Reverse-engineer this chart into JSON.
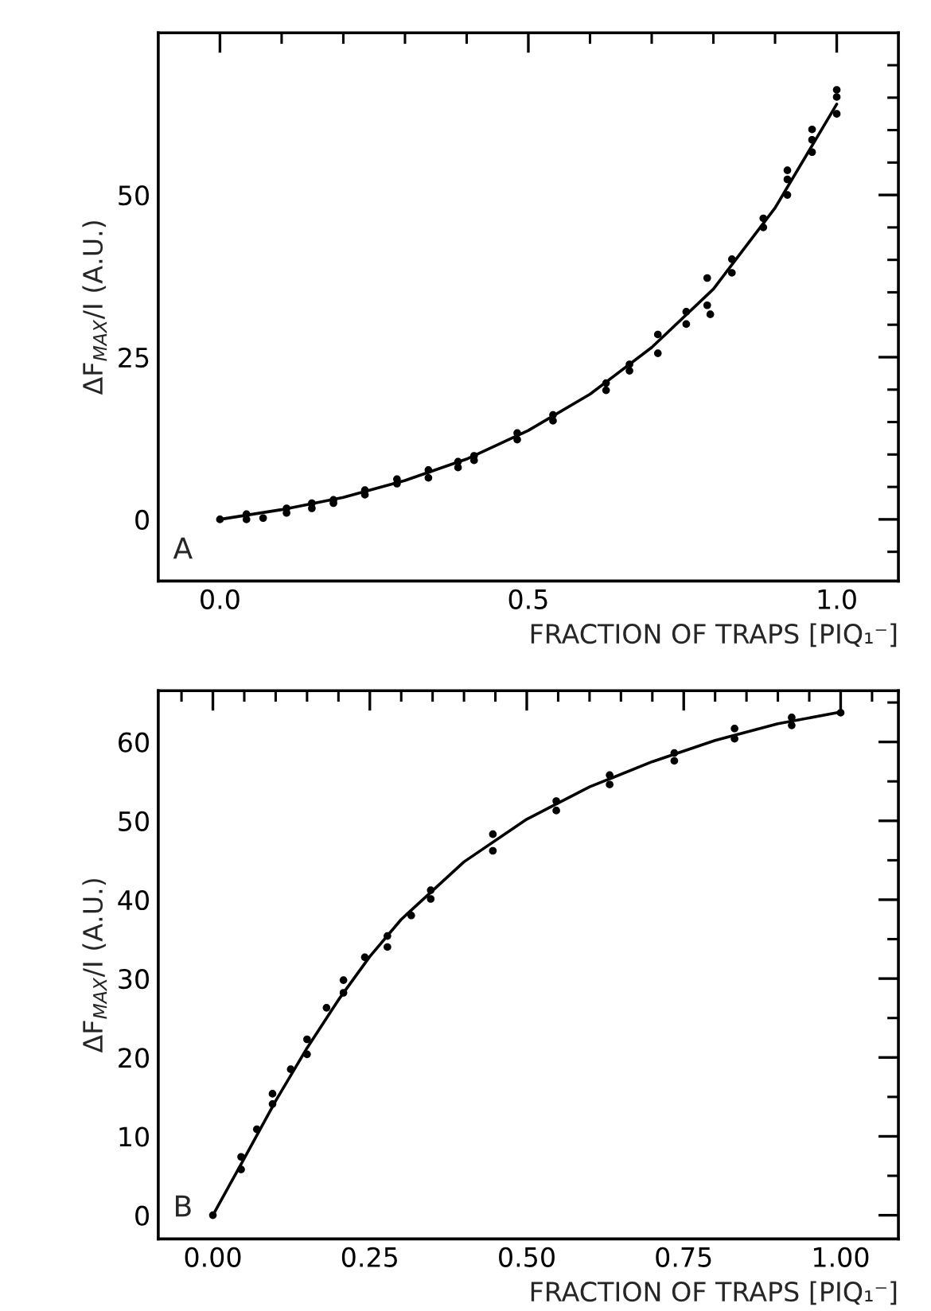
{
  "chart_data": [
    {
      "type": "scatter",
      "xlabel": "FRACTION OF TRAPS [PIQ₁⁻]",
      "ylabel": "ΔF$_{MAX}$/I (A.U.)",
      "annotations": [
        "A"
      ],
      "xlim": [
        -0.1,
        1.1
      ],
      "ylim": [
        -9.5,
        75
      ],
      "xticks": [
        {
          "value": 0.0,
          "label": "0.0"
        },
        {
          "value": 0.1,
          "label": null
        },
        {
          "value": 0.2,
          "label": null
        },
        {
          "value": 0.3,
          "label": null
        },
        {
          "value": 0.4,
          "label": null
        },
        {
          "value": 0.5,
          "label": "0.5"
        },
        {
          "value": 0.6,
          "label": null
        },
        {
          "value": 0.7,
          "label": null
        },
        {
          "value": 0.8,
          "label": null
        },
        {
          "value": 0.9,
          "label": null
        },
        {
          "value": 1.0,
          "label": "1.0"
        }
      ],
      "yticks": [
        {
          "value": -5,
          "label": null
        },
        0,
        {
          "value": 5,
          "label": null
        },
        {
          "value": 10,
          "label": null
        },
        {
          "value": 15,
          "label": null
        },
        {
          "value": 20,
          "label": null
        },
        25,
        {
          "value": 30,
          "label": null
        },
        {
          "value": 35,
          "label": null
        },
        {
          "value": 40,
          "label": null
        },
        {
          "value": 45,
          "label": null
        },
        50,
        {
          "value": 55,
          "label": null
        },
        {
          "value": 60,
          "label": null
        },
        {
          "value": 65,
          "label": null
        },
        {
          "value": 70,
          "label": null
        }
      ],
      "grid": false,
      "legend": false,
      "series": [
        {
          "marker": "circle",
          "color": "#000000",
          "x": [
            0,
            0.043,
            0.043,
            0.07,
            0.108,
            0.108,
            0.149,
            0.149,
            0.184,
            0.184,
            0.235,
            0.235,
            0.287,
            0.287,
            0.338,
            0.338,
            0.386,
            0.386,
            0.412,
            0.412,
            0.482,
            0.482,
            0.54,
            0.54,
            0.626,
            0.626,
            0.664,
            0.664,
            0.71,
            0.71,
            0.756,
            0.756,
            0.79,
            0.79,
            0.795,
            0.83,
            0.83,
            0.881,
            0.881,
            0.92,
            0.92,
            0.92,
            0.96,
            0.96,
            0.96,
            1.0,
            1.0,
            1.0
          ],
          "values": [
            0,
            0.8,
            0,
            0.2,
            1.7,
            1.0,
            2.5,
            1.7,
            3.0,
            2.5,
            4.5,
            3.8,
            6.2,
            5.5,
            7.6,
            6.4,
            8.9,
            8.0,
            9.8,
            9.1,
            13.3,
            12.3,
            16.1,
            15.2,
            21.0,
            19.9,
            23.9,
            22.9,
            28.5,
            25.6,
            32.0,
            30.1,
            37.2,
            33.0,
            31.6,
            40.1,
            38.0,
            46.4,
            45.0,
            53.8,
            52.4,
            50.0,
            60.1,
            58.5,
            56.6,
            66.2,
            65.1,
            62.5
          ]
        },
        {
          "type": "line",
          "color": "#000000",
          "x": [
            0,
            0.1,
            0.2,
            0.3,
            0.4,
            0.5,
            0.6,
            0.7,
            0.8,
            0.9,
            1.0
          ],
          "values": [
            0,
            1.5,
            3.4,
            6.0,
            9.3,
            13.7,
            19.3,
            26.5,
            35.5,
            48.0,
            64.0
          ]
        }
      ]
    },
    {
      "type": "scatter",
      "xlabel": "FRACTION OF TRAPS [PIQ₁⁻]",
      "ylabel": "ΔF$_{MAX}$/I (A.U.)",
      "annotations": [
        "B"
      ],
      "xlim": [
        -0.087,
        1.092
      ],
      "ylim": [
        -3,
        66.5
      ],
      "xticks": [
        {
          "value": -0.05,
          "label": null
        },
        {
          "value": 0.0,
          "label": "0.00"
        },
        {
          "value": 0.05,
          "label": null
        },
        {
          "value": 0.1,
          "label": null
        },
        {
          "value": 0.15,
          "label": null
        },
        {
          "value": 0.2,
          "label": null
        },
        {
          "value": 0.25,
          "label": "0.25"
        },
        {
          "value": 0.3,
          "label": null
        },
        {
          "value": 0.35,
          "label": null
        },
        {
          "value": 0.4,
          "label": null
        },
        {
          "value": 0.45,
          "label": null
        },
        {
          "value": 0.5,
          "label": "0.50"
        },
        {
          "value": 0.55,
          "label": null
        },
        {
          "value": 0.6,
          "label": null
        },
        {
          "value": 0.65,
          "label": null
        },
        {
          "value": 0.7,
          "label": null
        },
        {
          "value": 0.75,
          "label": "0.75"
        },
        {
          "value": 0.8,
          "label": null
        },
        {
          "value": 0.85,
          "label": null
        },
        {
          "value": 0.9,
          "label": null
        },
        {
          "value": 0.95,
          "label": null
        },
        {
          "value": 1.0,
          "label": "1.00"
        },
        {
          "value": 1.05,
          "label": null
        }
      ],
      "yticks": [
        0,
        {
          "value": 5,
          "label": null
        },
        10,
        {
          "value": 15,
          "label": null
        },
        20,
        {
          "value": 25,
          "label": null
        },
        30,
        {
          "value": 35,
          "label": null
        },
        40,
        {
          "value": 45,
          "label": null
        },
        50,
        {
          "value": 55,
          "label": null
        },
        60,
        {
          "value": 65,
          "label": null
        }
      ],
      "grid": false,
      "legend": false,
      "series": [
        {
          "marker": "circle",
          "color": "#000000",
          "x": [
            0,
            0.045,
            0.045,
            0.07,
            0.095,
            0.095,
            0.124,
            0.15,
            0.15,
            0.181,
            0.208,
            0.208,
            0.242,
            0.278,
            0.278,
            0.316,
            0.347,
            0.347,
            0.446,
            0.446,
            0.547,
            0.547,
            0.632,
            0.632,
            0.735,
            0.735,
            0.831,
            0.831,
            0.922,
            0.922,
            1.0
          ],
          "values": [
            0,
            7.4,
            5.8,
            10.9,
            15.4,
            14.1,
            18.5,
            22.3,
            20.4,
            26.3,
            29.8,
            28.2,
            32.7,
            35.4,
            34.0,
            38.0,
            41.2,
            40.1,
            48.3,
            46.2,
            52.5,
            51.3,
            55.8,
            54.6,
            58.6,
            57.6,
            61.7,
            60.4,
            63.1,
            62.1,
            63.7
          ]
        },
        {
          "type": "line",
          "color": "#000000",
          "x": [
            0,
            0.05,
            0.1,
            0.15,
            0.2,
            0.25,
            0.3,
            0.4,
            0.5,
            0.6,
            0.7,
            0.8,
            0.9,
            1.0
          ],
          "values": [
            0,
            7.2,
            14.5,
            21.2,
            27.3,
            32.8,
            37.5,
            44.8,
            50.2,
            54.3,
            57.5,
            60.2,
            62.3,
            63.8
          ]
        }
      ]
    }
  ]
}
